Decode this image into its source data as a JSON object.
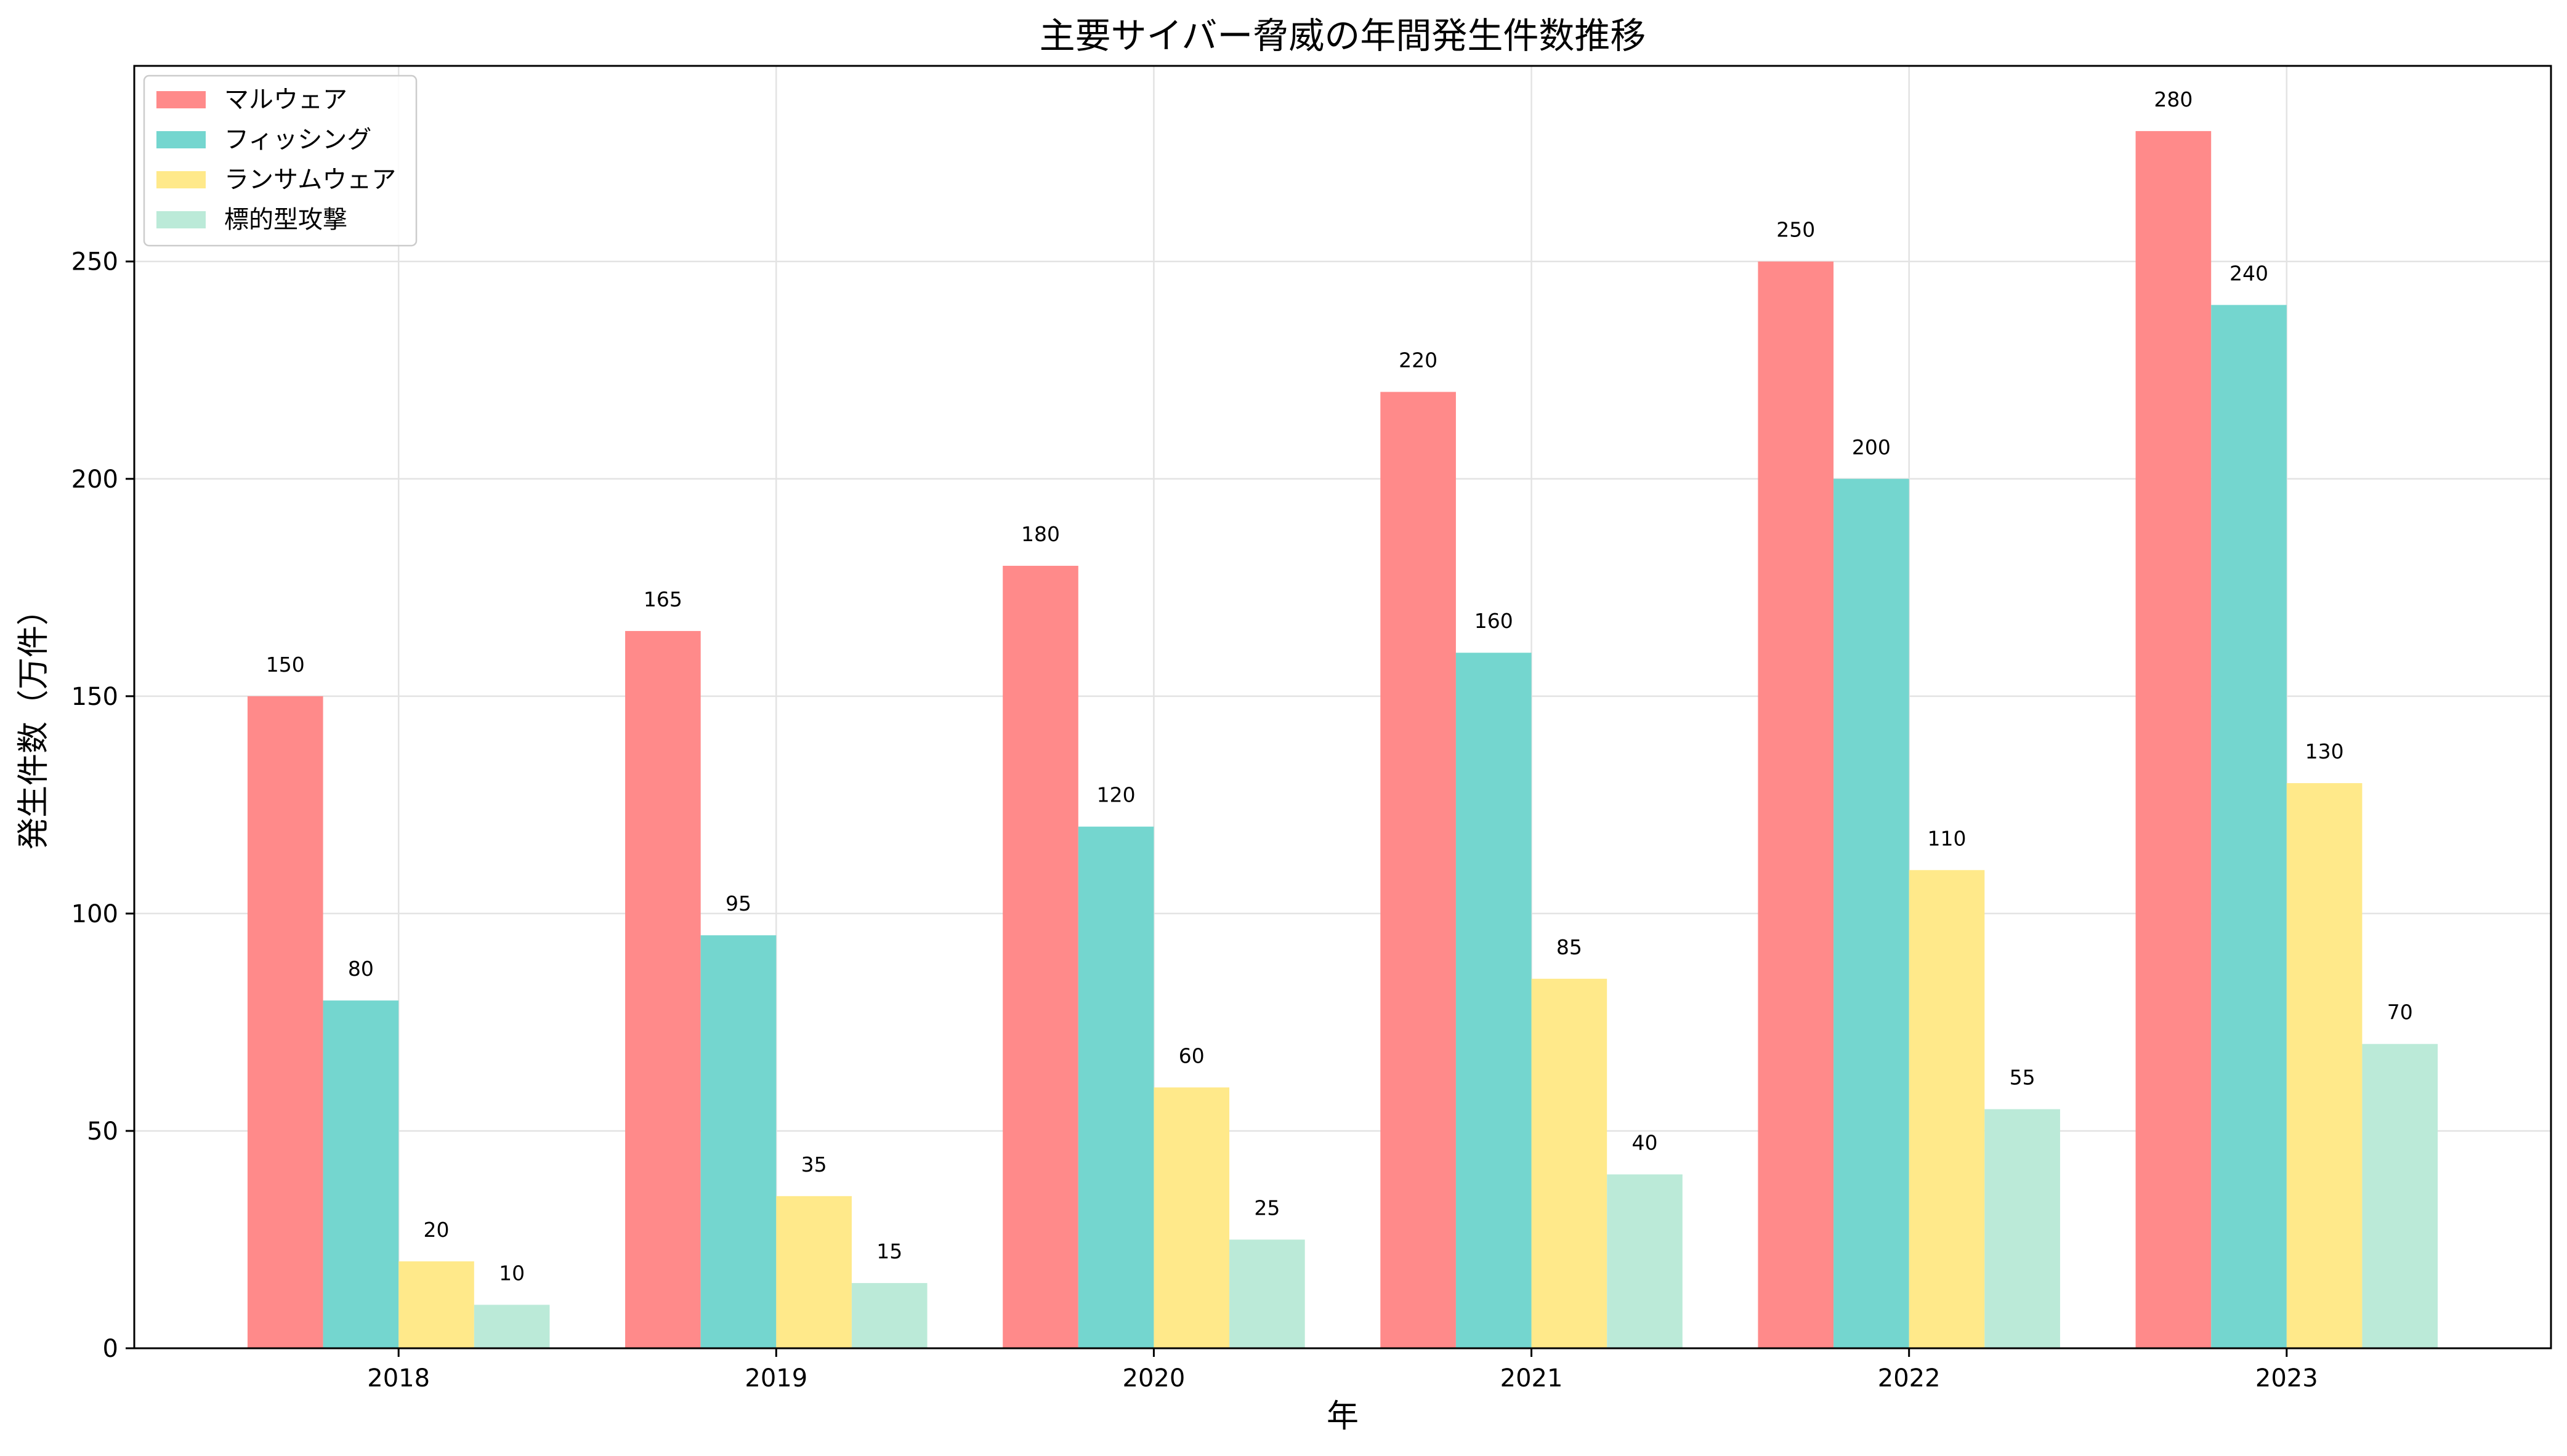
{
  "chart_data": {
    "type": "bar",
    "title": "主要サイバー脅威の年間発生件数推移",
    "xlabel": "年",
    "ylabel": "発生件数（万件）",
    "categories": [
      "2018",
      "2019",
      "2020",
      "2021",
      "2022",
      "2023"
    ],
    "series": [
      {
        "name": "マルウェア",
        "values": [
          150,
          165,
          180,
          220,
          250,
          280
        ],
        "color": "#ff8a8a"
      },
      {
        "name": "フィッシング",
        "values": [
          80,
          95,
          120,
          160,
          200,
          240
        ],
        "color": "#74d6cf"
      },
      {
        "name": "ランサムウェア",
        "values": [
          20,
          35,
          60,
          85,
          110,
          130
        ],
        "color": "#ffe98a"
      },
      {
        "name": "標的型攻撃",
        "values": [
          10,
          15,
          25,
          40,
          55,
          70
        ],
        "color": "#bbead8"
      }
    ],
    "ylim": [
      0,
      295
    ],
    "yticks": [
      0,
      50,
      100,
      150,
      200,
      250
    ],
    "grid": true,
    "legend_position": "top-left",
    "data_labels": true
  }
}
